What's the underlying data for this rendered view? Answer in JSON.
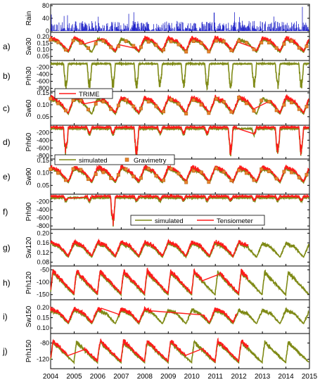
{
  "colors": {
    "simulated": "#7f8a16",
    "observed_red": "#ff1a1a",
    "gravimetry": "#e8842c",
    "rain": "#1f22c8",
    "axis": "#000000"
  },
  "chart_data": {
    "type": "line",
    "x_axis": {
      "ticks": [
        "2004",
        "2005",
        "2006",
        "2007",
        "2008",
        "2009",
        "2010",
        "2011",
        "2012",
        "2013",
        "2014",
        "2015"
      ],
      "range": [
        2004,
        2015
      ]
    },
    "legends": {
      "trime": [
        "TRIME"
      ],
      "simulated_gravimetry": [
        "simulated",
        "Gravimetry"
      ],
      "simulated_tensiometer": [
        "simulated",
        "Tensiometer"
      ]
    },
    "panels": [
      {
        "id": "rain",
        "label": "",
        "ylabel": "Rain",
        "yticks": [
          "0",
          "40",
          "80"
        ],
        "ylim": [
          0,
          80
        ],
        "series": [
          {
            "style": "bars",
            "name": ""
          }
        ],
        "description": "daily rainfall bars, peaks near 75 in 2014"
      },
      {
        "id": "a",
        "label": "a)",
        "ylabel": "Sw30",
        "yticks": [
          "0.05",
          "0.10",
          "0.15",
          "0.20"
        ],
        "ylim": [
          0.03,
          0.22
        ],
        "baseline": 0.08,
        "amp": 0.12,
        "series": [
          "simulated",
          "TRIME",
          "Gravimetry"
        ]
      },
      {
        "id": "b",
        "label": "b)",
        "ylabel": "Prh30",
        "yticks": [
          "-800",
          "-600",
          "-400",
          "-200"
        ],
        "ylim": [
          -850,
          -50
        ],
        "suction": true,
        "series": [
          "simulated"
        ]
      },
      {
        "id": "c",
        "label": "c)",
        "ylabel": "Sw60",
        "yticks": [
          "0.05",
          "0.10",
          "0.15"
        ],
        "ylim": [
          0.02,
          0.15
        ],
        "baseline": 0.06,
        "amp": 0.08,
        "series": [
          "simulated",
          "TRIME",
          "Gravimetry"
        ]
      },
      {
        "id": "d",
        "label": "d)",
        "ylabel": "Prh60",
        "yticks": [
          "-800",
          "-600",
          "-400",
          "-200"
        ],
        "ylim": [
          -850,
          -50
        ],
        "suction": true,
        "series": [
          "simulated",
          "Tensiometer"
        ]
      },
      {
        "id": "e",
        "label": "e)",
        "ylabel": "Sw90",
        "yticks": [
          "0.05",
          "0.10",
          "0.15"
        ],
        "ylim": [
          0.02,
          0.15
        ],
        "baseline": 0.06,
        "amp": 0.07,
        "series": [
          "simulated",
          "TRIME",
          "Gravimetry"
        ]
      },
      {
        "id": "f",
        "label": "f)",
        "ylabel": "Prh90",
        "yticks": [
          "-800",
          "-600",
          "-400",
          "-200"
        ],
        "ylim": [
          -850,
          -50
        ],
        "suction": true,
        "series": [
          "simulated",
          "Tensiometer"
        ]
      },
      {
        "id": "g",
        "label": "g)",
        "ylabel": "Sw120",
        "yticks": [
          "0.08",
          "0.12",
          "0.16",
          "0.20"
        ],
        "ylim": [
          0.07,
          0.21
        ],
        "baseline": 0.1,
        "amp": 0.07,
        "series": [
          "simulated",
          "TRIME"
        ]
      },
      {
        "id": "h",
        "label": "h)",
        "ylabel": "Prh120",
        "yticks": [
          "-150",
          "-100",
          "-50"
        ],
        "ylim": [
          -165,
          -40
        ],
        "series": [
          "simulated",
          "Tensiometer"
        ]
      },
      {
        "id": "i",
        "label": "i)",
        "ylabel": "Sw150",
        "yticks": [
          "0.10",
          "0.15",
          "0.20"
        ],
        "ylim": [
          0.08,
          0.23
        ],
        "baseline": 0.12,
        "amp": 0.08,
        "series": [
          "simulated",
          "TRIME"
        ]
      },
      {
        "id": "j",
        "label": "j)",
        "ylabel": "Prh150",
        "yticks": [
          "-120",
          "-80"
        ],
        "ylim": [
          -140,
          -60
        ],
        "series": [
          "simulated",
          "Tensiometer"
        ]
      }
    ]
  }
}
